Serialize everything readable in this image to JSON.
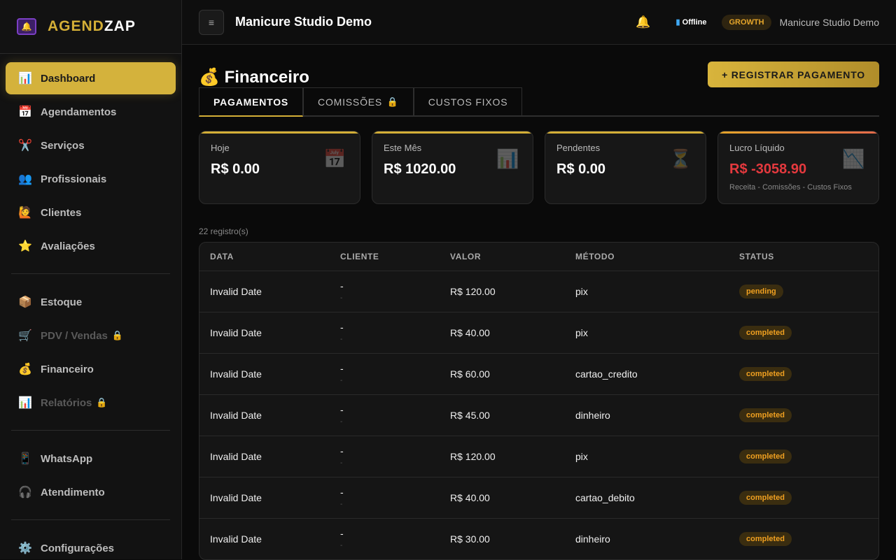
{
  "app": {
    "logo_a": "AGEND",
    "logo_b": "ZAP"
  },
  "sidebar": {
    "items": [
      {
        "label": "Dashboard",
        "icon": "📊",
        "active": true
      },
      {
        "label": "Agendamentos",
        "icon": "📅"
      },
      {
        "label": "Serviços",
        "icon": "✂️"
      },
      {
        "label": "Profissionais",
        "icon": "👥"
      },
      {
        "label": "Clientes",
        "icon": "🙋"
      },
      {
        "label": "Avaliações",
        "icon": "⭐"
      },
      {
        "label": "Estoque",
        "icon": "📦"
      },
      {
        "label": "PDV / Vendas",
        "icon": "🛒",
        "locked": true
      },
      {
        "label": "Financeiro",
        "icon": "💰"
      },
      {
        "label": "Relatórios",
        "icon": "📊",
        "locked": true
      },
      {
        "label": "WhatsApp",
        "icon": "📱"
      },
      {
        "label": "Atendimento",
        "icon": "🎧"
      },
      {
        "label": "Configurações",
        "icon": "⚙️"
      }
    ],
    "lock_icon": "🔒"
  },
  "header": {
    "title": "Manicure Studio Demo",
    "menu_icon": "≡",
    "bell_icon": "🔔",
    "status": "Offline",
    "plan": "GROWTH",
    "user": "Manicure Studio Demo"
  },
  "page": {
    "icon": "💰",
    "title": "Financeiro",
    "register_button": "+ REGISTRAR PAGAMENTO",
    "tabs": [
      {
        "label": "PAGAMENTOS",
        "active": true
      },
      {
        "label": "COMISSÕES",
        "locked": true
      },
      {
        "label": "CUSTOS FIXOS"
      }
    ]
  },
  "cards": [
    {
      "label": "Hoje",
      "value": "R$ 0.00",
      "icon": "📅"
    },
    {
      "label": "Este Mês",
      "value": "R$ 1020.00",
      "icon": "📊"
    },
    {
      "label": "Pendentes",
      "value": "R$ 0.00",
      "icon": "⏳"
    },
    {
      "label": "Lucro Líquido",
      "value": "R$ -3058.90",
      "sub": "Receita - Comissões - Custos Fixos",
      "icon": "📉"
    }
  ],
  "table": {
    "count": "22 registro(s)",
    "headers": [
      "DATA",
      "CLIENTE",
      "VALOR",
      "MÉTODO",
      "STATUS"
    ],
    "rows": [
      {
        "date": "Invalid Date",
        "client": "-",
        "client_sub": "-",
        "value": "R$ 120.00",
        "method": "pix",
        "status": "pending"
      },
      {
        "date": "Invalid Date",
        "client": "-",
        "client_sub": "-",
        "value": "R$ 40.00",
        "method": "pix",
        "status": "completed"
      },
      {
        "date": "Invalid Date",
        "client": "-",
        "client_sub": "-",
        "value": "R$ 60.00",
        "method": "cartao_credito",
        "status": "completed"
      },
      {
        "date": "Invalid Date",
        "client": "-",
        "client_sub": "-",
        "value": "R$ 45.00",
        "method": "dinheiro",
        "status": "completed"
      },
      {
        "date": "Invalid Date",
        "client": "-",
        "client_sub": "-",
        "value": "R$ 120.00",
        "method": "pix",
        "status": "completed"
      },
      {
        "date": "Invalid Date",
        "client": "-",
        "client_sub": "-",
        "value": "R$ 40.00",
        "method": "cartao_debito",
        "status": "completed"
      },
      {
        "date": "Invalid Date",
        "client": "-",
        "client_sub": "-",
        "value": "R$ 30.00",
        "method": "dinheiro",
        "status": "completed"
      }
    ]
  }
}
